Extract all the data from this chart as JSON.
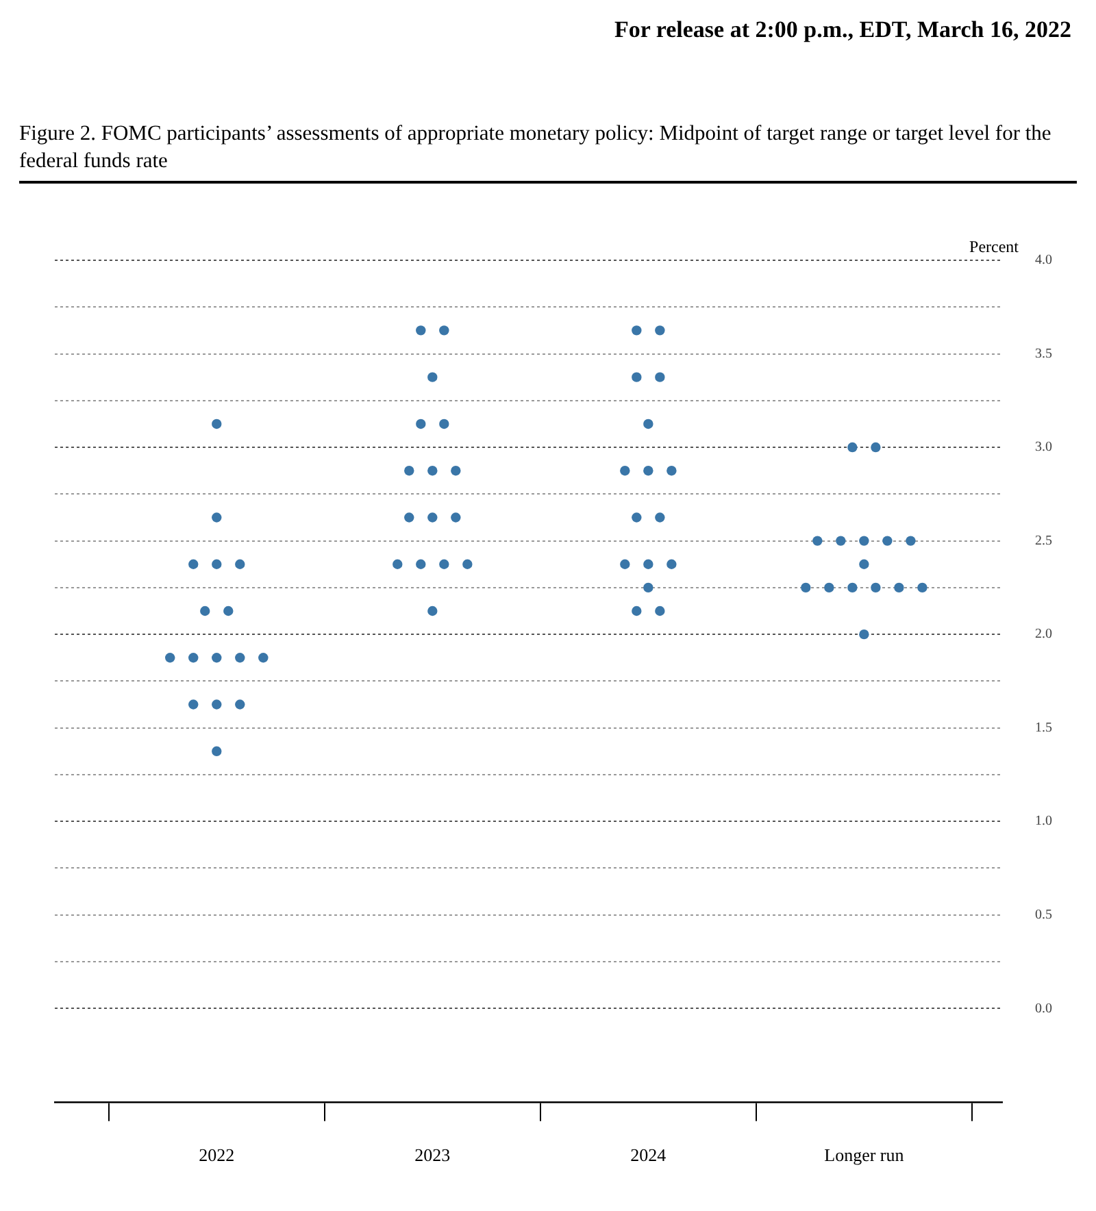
{
  "chart_data": {
    "type": "scatter",
    "title": "Figure 2.  FOMC participants’ assessments of appropriate monetary policy: Midpoint of target range or target level for the federal funds rate",
    "annotations": [
      "For release at 2:00 p.m., EDT, March 16, 2022"
    ],
    "ylabel": "Percent",
    "categories": [
      "2022",
      "2023",
      "2024",
      "Longer run"
    ],
    "series": [
      {
        "color": "#3a76a8",
        "values": [
          3.125,
          3.625,
          3.625,
          3.0
        ]
      },
      {
        "color": "#3a76a8",
        "values": [
          2.625,
          3.625,
          3.625,
          3.0
        ]
      },
      {
        "color": "#3a76a8",
        "values": [
          2.375,
          3.375,
          3.375,
          2.5
        ]
      },
      {
        "color": "#3a76a8",
        "values": [
          2.375,
          3.125,
          3.375,
          2.5
        ]
      },
      {
        "color": "#3a76a8",
        "values": [
          2.375,
          3.125,
          3.125,
          2.5
        ]
      },
      {
        "color": "#3a76a8",
        "values": [
          2.125,
          2.875,
          2.875,
          2.5
        ]
      },
      {
        "color": "#3a76a8",
        "values": [
          2.125,
          2.875,
          2.875,
          2.5
        ]
      },
      {
        "color": "#3a76a8",
        "values": [
          1.875,
          2.875,
          2.875,
          2.375
        ]
      },
      {
        "color": "#3a76a8",
        "values": [
          1.875,
          2.625,
          2.625,
          2.25
        ]
      },
      {
        "color": "#3a76a8",
        "values": [
          1.875,
          2.625,
          2.625,
          2.25
        ]
      },
      {
        "color": "#3a76a8",
        "values": [
          1.875,
          2.625,
          2.375,
          2.25
        ]
      },
      {
        "color": "#3a76a8",
        "values": [
          1.875,
          2.375,
          2.375,
          2.25
        ]
      },
      {
        "color": "#3a76a8",
        "values": [
          1.625,
          2.375,
          2.375,
          2.25
        ]
      },
      {
        "color": "#3a76a8",
        "values": [
          1.625,
          2.375,
          2.25,
          2.25
        ]
      },
      {
        "color": "#3a76a8",
        "values": [
          1.625,
          2.375,
          2.125,
          2.0
        ]
      },
      {
        "color": "#3a76a8",
        "values": [
          1.375,
          2.125,
          2.125,
          null
        ]
      }
    ],
    "ylim": [
      -0.5,
      4.0
    ],
    "yticks": [
      {
        "value": 0,
        "label": "0.0"
      },
      {
        "value": 0.25,
        "label": null
      },
      {
        "value": 0.5,
        "label": "0.5"
      },
      {
        "value": 0.75,
        "label": null
      },
      {
        "value": 1,
        "label": "1.0"
      },
      {
        "value": 1.25,
        "label": null
      },
      {
        "value": 1.5,
        "label": "1.5"
      },
      {
        "value": 1.75,
        "label": null
      },
      {
        "value": 2,
        "label": "2.0"
      },
      {
        "value": 2.25,
        "label": null
      },
      {
        "value": 2.5,
        "label": "2.5"
      },
      {
        "value": 2.75,
        "label": null
      },
      {
        "value": 3,
        "label": "3.0"
      },
      {
        "value": 3.25,
        "label": null
      },
      {
        "value": 3.5,
        "label": "3.5"
      },
      {
        "value": 3.75,
        "label": null
      },
      {
        "value": 4,
        "label": "4.0"
      }
    ],
    "grid": "y",
    "legend": false,
    "marker": "circle"
  }
}
